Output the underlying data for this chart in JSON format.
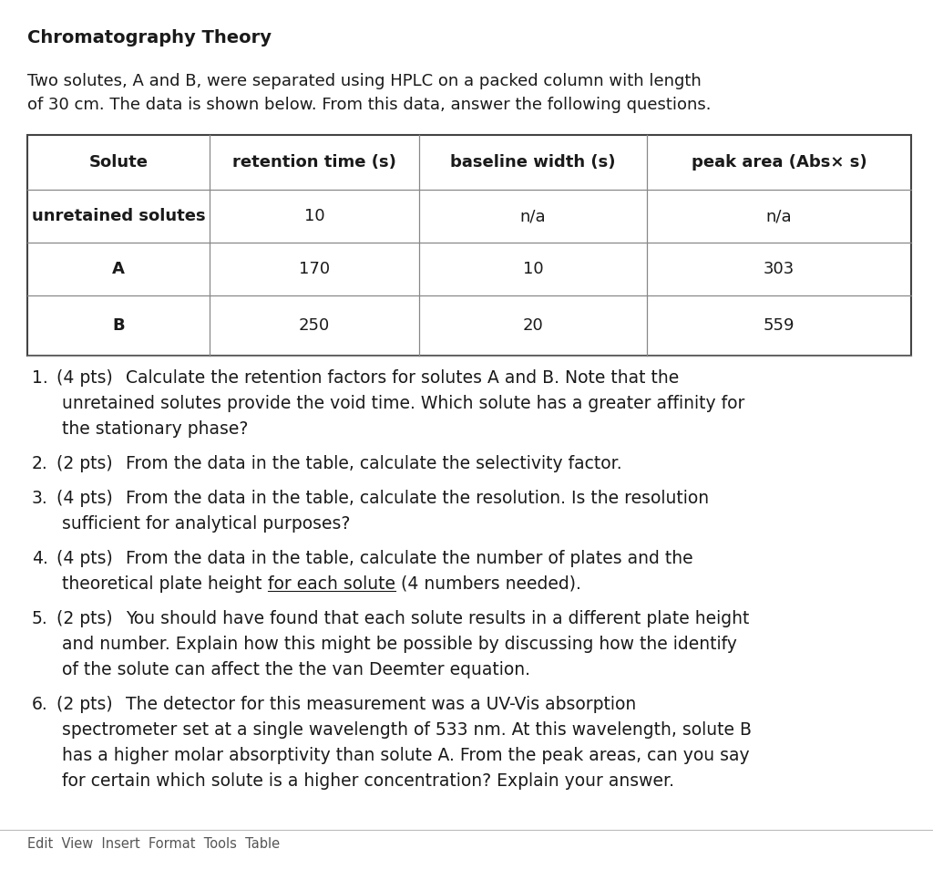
{
  "title": "Chromatography Theory",
  "intro_line1": "Two solutes, A and B, were separated using HPLC on a packed column with length",
  "intro_line2": "of 30 cm. The data is shown below. From this data, answer the following questions.",
  "table_headers": [
    "Solute",
    "retention time (s)",
    "baseline width (s)",
    "peak area (Abs× s)"
  ],
  "table_rows": [
    [
      "unretained solutes",
      "10",
      "n/a",
      "n/a"
    ],
    [
      "A",
      "170",
      "10",
      "303"
    ],
    [
      "B",
      "250",
      "20",
      "559"
    ]
  ],
  "questions": [
    {
      "num": "1.",
      "pts": "(4 pts)",
      "lines": [
        "Calculate the retention factors for solutes A and B. Note that the",
        "unretained solutes provide the void time. Which solute has a greater affinity for",
        "the stationary phase?"
      ]
    },
    {
      "num": "2.",
      "pts": "(2 pts)",
      "lines": [
        "From the data in the table, calculate the selectivity factor."
      ]
    },
    {
      "num": "3.",
      "pts": "(4 pts)",
      "lines": [
        "From the data in the table, calculate the resolution. Is the resolution",
        "sufficient for analytical purposes?"
      ]
    },
    {
      "num": "4.",
      "pts": "(4 pts)",
      "lines": [
        "From the data in the table, calculate the number of plates and the",
        "theoretical plate height __for each solute__ (4 numbers needed)."
      ]
    },
    {
      "num": "5.",
      "pts": "(2 pts)",
      "lines": [
        "You should have found that each solute results in a different plate height",
        "and number. Explain how this might be possible by discussing how the identify",
        "of the solute can affect the the van Deemter equation."
      ]
    },
    {
      "num": "6.",
      "pts": "(2 pts)",
      "lines": [
        "The detector for this measurement was a UV-Vis absorption",
        "spectrometer set at a single wavelength of 533 nm. At this wavelength, solute B",
        "has a higher molar absorptivity than solute A. From the peak areas, can you say",
        "for certain which solute is a higher concentration? Explain your answer."
      ]
    }
  ],
  "footer": "Edit  View  Insert  Format  Tools  Table",
  "bg_color": "#ffffff",
  "text_color": "#1a1a1a",
  "border_color": "#444444",
  "line_color": "#888888"
}
